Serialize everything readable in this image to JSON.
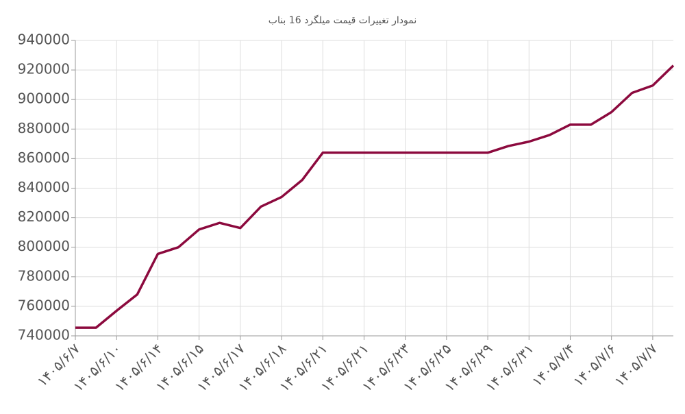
{
  "chart_data": {
    "type": "line",
    "title": "نمودار تغییرات قیمت میلگرد 16 بناب",
    "categories": [
      "۱۴۰۵/۶/۷",
      null,
      "۱۴۰۵/۶/۱۰",
      null,
      "۱۴۰۵/۶/۱۴",
      null,
      "۱۴۰۵/۶/۱۵",
      null,
      "۱۴۰۵/۶/۱۷",
      null,
      "۱۴۰۵/۶/۱۸",
      null,
      "۱۴۰۵/۶/۲۱",
      null,
      "۱۴۰۵/۶/۲۱",
      null,
      "۱۴۰۵/۶/۲۳",
      null,
      "۱۴۰۵/۶/۲۵",
      null,
      "۱۴۰۵/۶/۲۹",
      null,
      "۱۴۰۵/۶/۳۱",
      null,
      "۱۴۰۵/۷/۴",
      null,
      "۱۴۰۵/۷/۶",
      null,
      "۱۴۰۵/۷/۷",
      null
    ],
    "series": [
      {
        "color": "#8c0a3e",
        "values": [
          745500,
          745500,
          757000,
          768000,
          795500,
          800000,
          812000,
          816500,
          813000,
          827500,
          834000,
          845500,
          864000,
          864000,
          864000,
          864000,
          864000,
          864000,
          864000,
          864000,
          864000,
          868500,
          871500,
          876000,
          883000,
          883000,
          891500,
          904500,
          909500,
          923000
        ]
      }
    ],
    "ylim": [
      740000,
      940000
    ],
    "yticks": [
      740000,
      760000,
      780000,
      800000,
      820000,
      840000,
      860000,
      880000,
      900000,
      920000,
      940000
    ],
    "grid": true
  }
}
